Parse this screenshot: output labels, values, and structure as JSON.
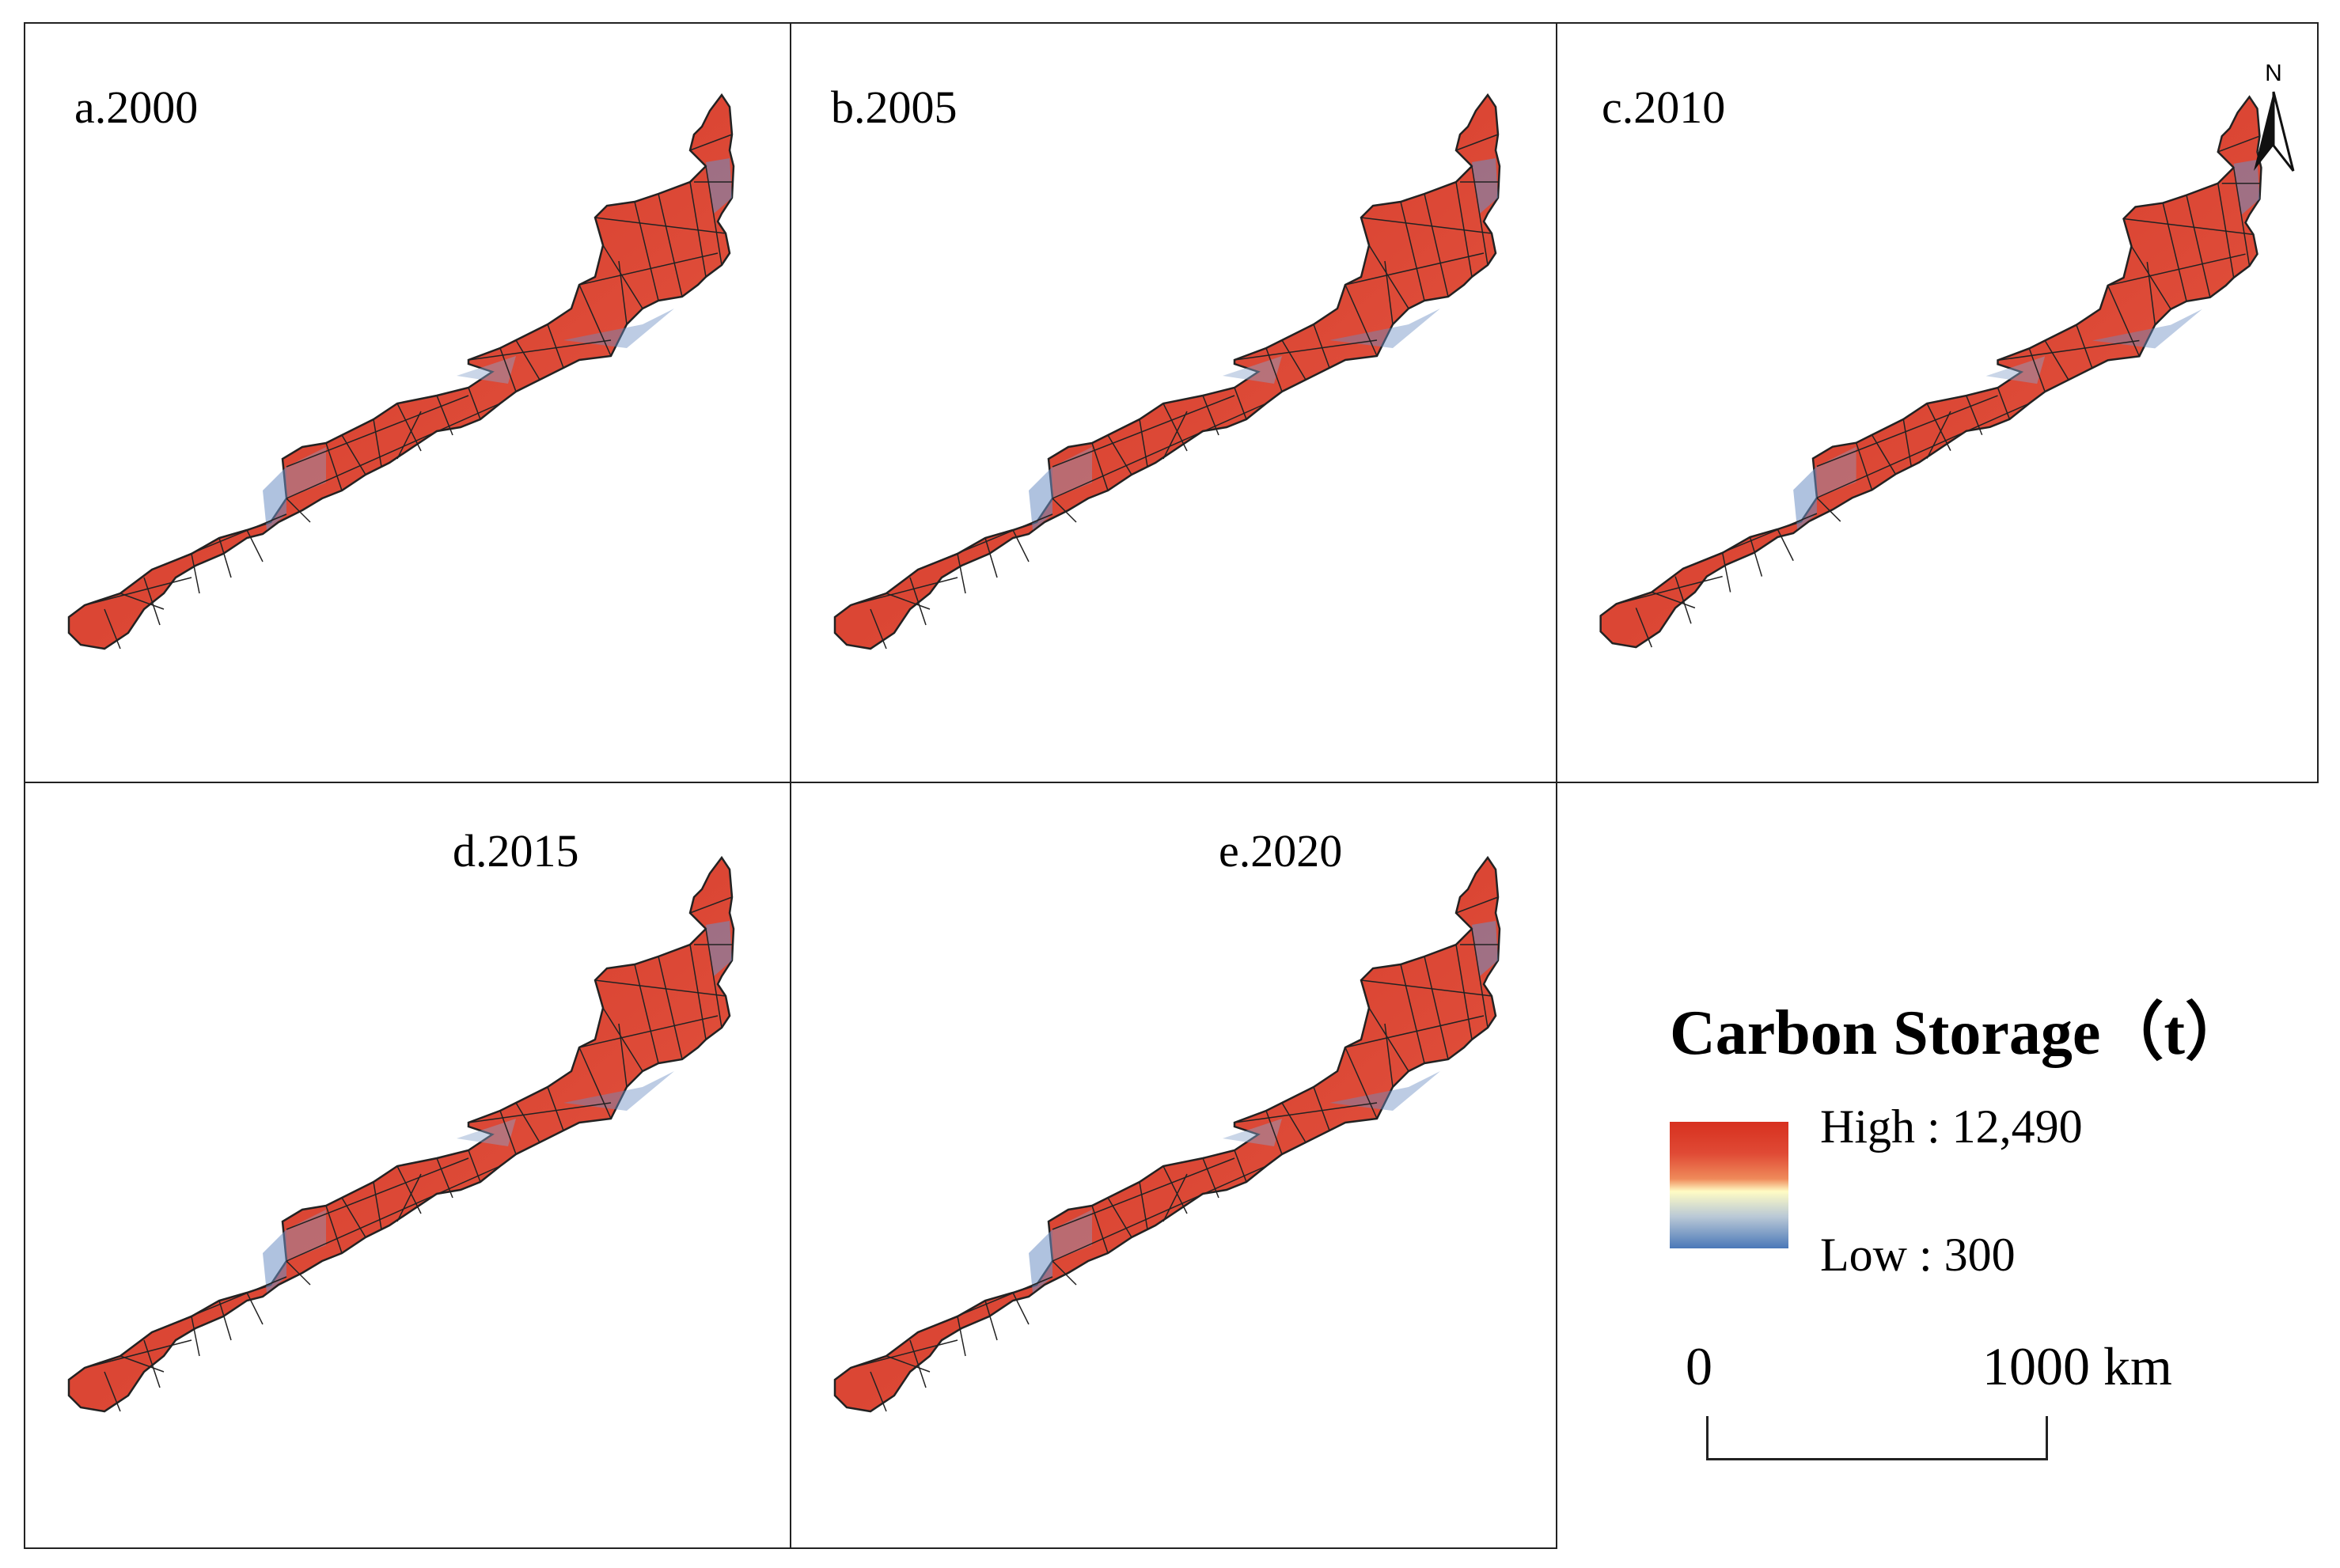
{
  "panels": [
    {
      "id": "a",
      "label": "a.2000"
    },
    {
      "id": "b",
      "label": "b.2005"
    },
    {
      "id": "c",
      "label": "c.2010"
    },
    {
      "id": "d",
      "label": "d.2015"
    },
    {
      "id": "e",
      "label": "e.2020"
    }
  ],
  "legend": {
    "title": "Carbon Storage（t）",
    "high_label": "High : 12,490",
    "low_label": "Low : 300",
    "high_value": 12490,
    "low_value": 300,
    "ramp_colors": [
      "#d7301f",
      "#ef8a5a",
      "#fffcc4",
      "#4a78b8"
    ]
  },
  "scale_bar": {
    "start": "0",
    "end": "1000 km"
  },
  "north_arrow": {
    "label": "N"
  },
  "colors": {
    "region_fill": "#e0503c",
    "low_patch": "#6d8fc4",
    "boundary": "#222222"
  }
}
